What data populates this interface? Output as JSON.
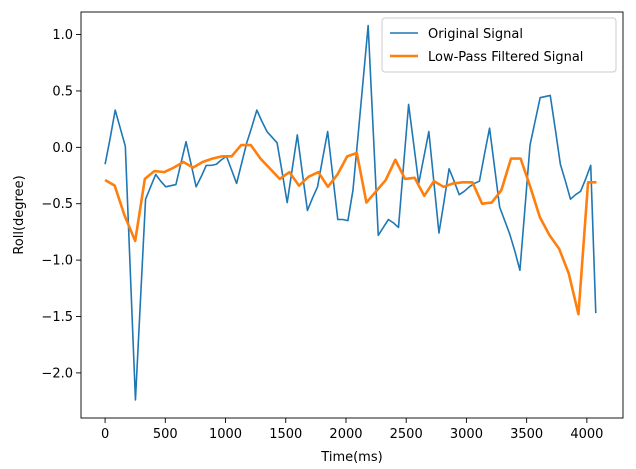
{
  "chart_data": {
    "type": "line",
    "title": "",
    "xlabel": "Time(ms)",
    "ylabel": "Roll(degree)",
    "xlim": [
      -200,
      4300
    ],
    "ylim": [
      -2.4,
      1.2
    ],
    "xticks": [
      0,
      500,
      1000,
      1500,
      2000,
      2500,
      3000,
      3500,
      4000
    ],
    "yticks": [
      -2.0,
      -1.5,
      -1.0,
      -0.5,
      0.0,
      0.5,
      1.0
    ],
    "xtick_labels": [
      "0",
      "500",
      "1000",
      "1500",
      "2000",
      "2500",
      "3000",
      "3500",
      "4000"
    ],
    "ytick_labels": [
      "−2.0",
      "−1.5",
      "−1.0",
      "−0.5",
      "0.0",
      "0.5",
      "1.0"
    ],
    "grid": false,
    "legend_position": "top-right",
    "series": [
      {
        "name": "Original Signal",
        "color": "#1f77b4",
        "width": 1.6,
        "x": [
          0,
          42,
          84,
          126,
          168,
          210,
          252,
          294,
          336,
          378,
          420,
          462,
          504,
          546,
          588,
          630,
          672,
          714,
          756,
          798,
          840,
          882,
          924,
          966,
          1008,
          1050,
          1092,
          1134,
          1176,
          1218,
          1260,
          1302,
          1344,
          1386,
          1428,
          1470,
          1512,
          1554,
          1596,
          1638,
          1680,
          1722,
          1764,
          1806,
          1848,
          1890,
          1932,
          1974,
          2016,
          2058,
          2100,
          2142,
          2184,
          2226,
          2268,
          2310,
          2352,
          2394,
          2436,
          2478,
          2520,
          2562,
          2604,
          2646,
          2688,
          2730,
          2772,
          2814,
          2856,
          2898,
          2940,
          2982,
          3024,
          3066,
          3108,
          3150,
          3192,
          3234,
          3276,
          3318,
          3360,
          3402,
          3444,
          3486,
          3528,
          3570,
          3612,
          3654,
          3696,
          3738,
          3780,
          3822,
          3864,
          3906,
          3948,
          3990,
          4032,
          4074
        ],
        "y": [
          -0.15,
          0.08,
          0.33,
          0.17,
          0.01,
          -1.12,
          -2.24,
          -1.35,
          -0.46,
          -0.35,
          -0.24,
          -0.3,
          -0.35,
          -0.34,
          -0.33,
          -0.14,
          0.05,
          -0.15,
          -0.35,
          -0.26,
          -0.16,
          -0.16,
          -0.15,
          -0.11,
          -0.08,
          -0.2,
          -0.32,
          -0.14,
          0.04,
          0.18,
          0.33,
          0.23,
          0.14,
          0.09,
          0.04,
          -0.22,
          -0.49,
          -0.19,
          0.11,
          -0.23,
          -0.56,
          -0.45,
          -0.35,
          -0.1,
          0.14,
          -0.25,
          -0.64,
          -0.64,
          -0.65,
          -0.38,
          0.1,
          0.59,
          1.08,
          0.15,
          -0.78,
          -0.71,
          -0.64,
          -0.67,
          -0.71,
          -0.16,
          0.38,
          0.03,
          -0.32,
          -0.09,
          0.14,
          -0.31,
          -0.76,
          -0.48,
          -0.19,
          -0.3,
          -0.42,
          -0.39,
          -0.35,
          -0.32,
          -0.3,
          -0.06,
          0.17,
          -0.18,
          -0.53,
          -0.65,
          -0.77,
          -0.92,
          -1.09,
          -0.54,
          0.02,
          0.23,
          0.44,
          0.45,
          0.46,
          0.16,
          -0.15,
          -0.3,
          -0.46,
          -0.42,
          -0.39,
          -0.28,
          -0.16,
          -1.47
        ]
      },
      {
        "name": "Low-Pass Filtered Signal",
        "color": "#ff7f0e",
        "width": 2.6,
        "x": [
          0,
          80,
          160,
          250,
          330,
          410,
          490,
          570,
          650,
          730,
          810,
          890,
          970,
          1050,
          1130,
          1210,
          1290,
          1370,
          1450,
          1530,
          1610,
          1690,
          1770,
          1850,
          1930,
          2010,
          2090,
          2170,
          2250,
          2330,
          2410,
          2490,
          2570,
          2650,
          2730,
          2810,
          2890,
          2970,
          3050,
          3130,
          3210,
          3290,
          3370,
          3450,
          3530,
          3610,
          3690,
          3770,
          3850,
          3930,
          4010,
          4070,
          4080
        ],
        "y": [
          -0.29,
          -0.34,
          -0.6,
          -0.83,
          -0.28,
          -0.21,
          -0.22,
          -0.18,
          -0.13,
          -0.18,
          -0.13,
          -0.1,
          -0.08,
          -0.08,
          0.02,
          0.02,
          -0.1,
          -0.19,
          -0.28,
          -0.22,
          -0.34,
          -0.26,
          -0.22,
          -0.35,
          -0.24,
          -0.08,
          -0.05,
          -0.49,
          -0.39,
          -0.29,
          -0.11,
          -0.28,
          -0.27,
          -0.43,
          -0.3,
          -0.35,
          -0.32,
          -0.31,
          -0.31,
          -0.5,
          -0.49,
          -0.38,
          -0.1,
          -0.1,
          -0.35,
          -0.62,
          -0.78,
          -0.9,
          -1.12,
          -1.48,
          -0.31,
          -0.31,
          -0.31
        ]
      }
    ]
  }
}
